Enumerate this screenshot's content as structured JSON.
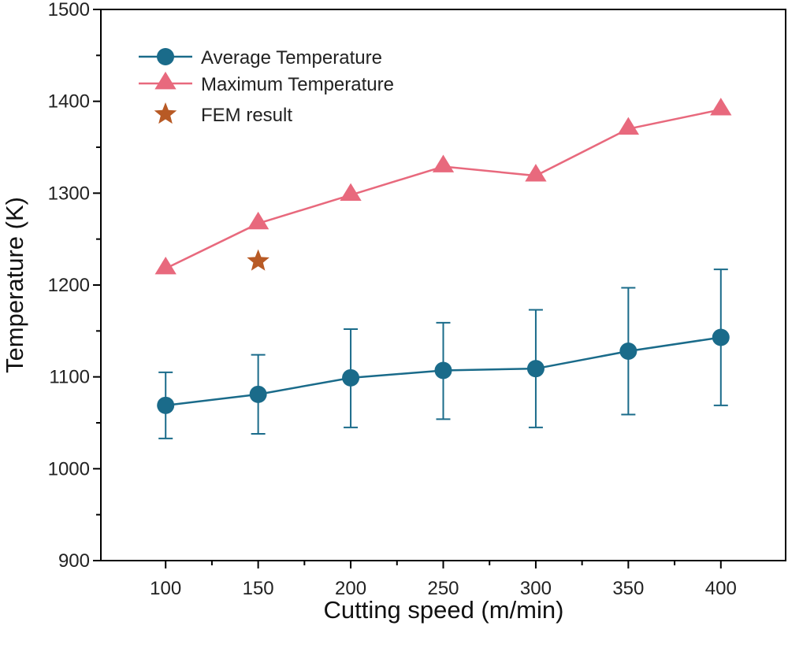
{
  "chart_data": {
    "type": "line",
    "xlabel": "Cutting speed (m/min)",
    "ylabel": "Temperature (K)",
    "xlim": [
      65,
      435
    ],
    "ylim": [
      900,
      1500
    ],
    "xticks": [
      100,
      150,
      200,
      250,
      300,
      350,
      400
    ],
    "yticks": [
      900,
      1000,
      1100,
      1200,
      1300,
      1400,
      1500
    ],
    "x": [
      100,
      150,
      200,
      250,
      300,
      350,
      400
    ],
    "grid": false,
    "legend_position": "top-left",
    "series": [
      {
        "name": "Average Temperature",
        "marker": "circle",
        "color": "#1a6b8a",
        "values": [
          1069,
          1081,
          1099,
          1107,
          1109,
          1128,
          1143
        ],
        "error_low": [
          1033,
          1038,
          1045,
          1054,
          1045,
          1059,
          1069
        ],
        "error_high": [
          1105,
          1124,
          1152,
          1159,
          1173,
          1197,
          1217
        ]
      },
      {
        "name": "Maximum Temperature",
        "marker": "triangle",
        "color": "#e8697d",
        "values": [
          1218,
          1267,
          1298,
          1329,
          1319,
          1370,
          1391
        ]
      },
      {
        "name": "FEM result",
        "marker": "star",
        "color": "#b85a25",
        "points": [
          {
            "x": 150,
            "y": 1226
          }
        ]
      }
    ]
  }
}
